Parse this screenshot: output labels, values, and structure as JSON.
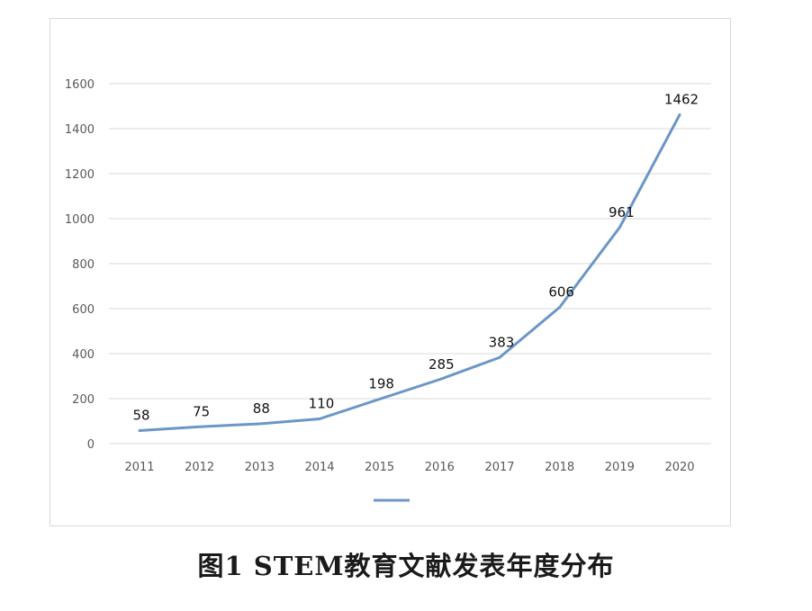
{
  "caption": "图1   STEM教育文献发表年度分布",
  "colors": {
    "line": "#6b96c6",
    "grid": "#d9d9d9",
    "tick_text": "#595959"
  },
  "chart_data": {
    "type": "line",
    "x": [
      "2011",
      "2012",
      "2013",
      "2014",
      "2015",
      "2016",
      "2017",
      "2018",
      "2019",
      "2020"
    ],
    "series": [
      {
        "values": [
          58,
          75,
          88,
          110,
          198,
          285,
          383,
          606,
          961,
          1462
        ]
      }
    ],
    "yticks": [
      0,
      200,
      400,
      600,
      800,
      1000,
      1200,
      1400,
      1600
    ],
    "ylim": [
      0,
      1600
    ],
    "grid": true,
    "legend": "bottom",
    "data_labels": true
  }
}
